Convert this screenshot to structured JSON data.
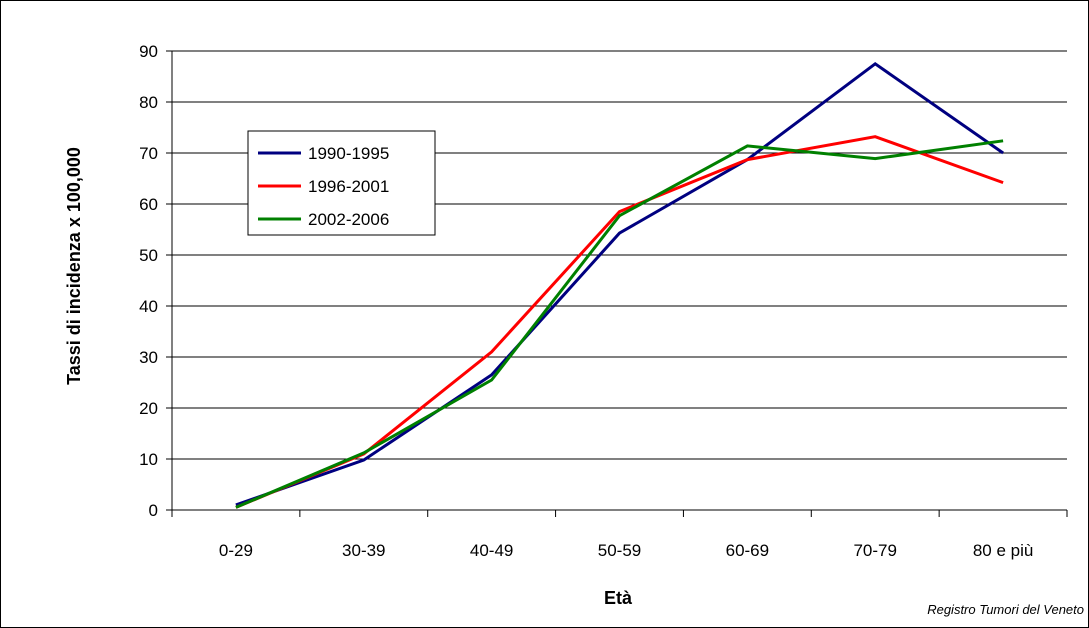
{
  "chart_data": {
    "type": "line",
    "categories": [
      "0-29",
      "30-39",
      "40-49",
      "50-59",
      "60-69",
      "70-79",
      "80 e più"
    ],
    "series": [
      {
        "name": "1990-1995",
        "color": "#000080",
        "values": [
          1.0,
          9.8,
          26.5,
          54.3,
          68.7,
          87.5,
          70.0
        ]
      },
      {
        "name": "1996-2001",
        "color": "#ff0000",
        "values": [
          0.5,
          11.0,
          31.0,
          58.5,
          68.7,
          73.2,
          64.2
        ]
      },
      {
        "name": "2002-2006",
        "color": "#008000",
        "values": [
          0.5,
          11.2,
          25.5,
          57.7,
          71.4,
          68.9,
          72.4
        ]
      }
    ],
    "xlabel": "Età",
    "ylabel": "Tassi di incidenza x 100,000",
    "ylim": [
      0,
      90
    ],
    "yticks": [
      0,
      10,
      20,
      30,
      40,
      50,
      60,
      70,
      80,
      90
    ],
    "grid": "horizontal",
    "legend_position": "upper-left inside plot"
  },
  "source_note": "Registro Tumori del Veneto"
}
